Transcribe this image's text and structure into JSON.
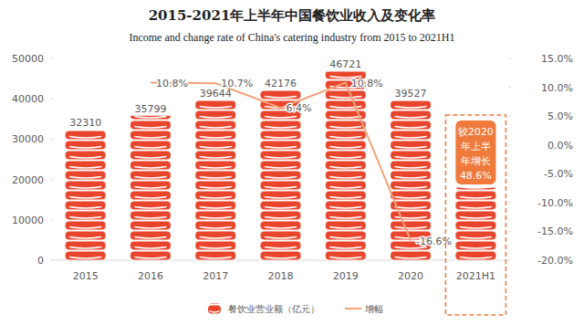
{
  "chart_data": {
    "type": "bar",
    "title": "2015-2021年上半年中国餐饮业收入及变化率",
    "subtitle": "Income and change rate of China's catering industry from 2015 to 2021H1",
    "categories": [
      "2015",
      "2016",
      "2017",
      "2018",
      "2019",
      "2020",
      "2021H1"
    ],
    "series": [
      {
        "name": "餐饮业营业额（亿元）",
        "type": "bar",
        "color": "#e8452c",
        "values": [
          32310,
          35799,
          39644,
          42176,
          46721,
          39527,
          18000
        ],
        "value_labels": [
          "32310",
          "35799",
          "39644",
          "42176",
          "46721",
          "39527",
          null
        ]
      },
      {
        "name": "增幅",
        "type": "line",
        "axis": "y2",
        "color": "#f4a27a",
        "values": [
          null,
          10.8,
          10.7,
          6.4,
          10.8,
          -16.6,
          null
        ],
        "value_labels": [
          null,
          "10.8%",
          "10.7%",
          "6.4%",
          "10.8%",
          "-16.6%",
          null
        ]
      }
    ],
    "ylim": [
      0,
      50000
    ],
    "yticks": [
      0,
      10000,
      20000,
      30000,
      40000,
      50000
    ],
    "y2lim": [
      -20,
      15
    ],
    "y2ticks": [
      {
        "value": -20,
        "label": "-20.0%"
      },
      {
        "value": -15,
        "label": "-15.0%"
      },
      {
        "value": -10,
        "label": "-10.0%"
      },
      {
        "value": -5,
        "label": "-5.0%"
      },
      {
        "value": 0,
        "label": "0.0%"
      },
      {
        "value": 5,
        "label": "5.0%"
      },
      {
        "value": 10,
        "label": "10.0%"
      },
      {
        "value": 15,
        "label": "15.0%"
      }
    ],
    "data_labels": true,
    "grid": false,
    "legend": "bottom",
    "annotation": [
      "较2020",
      "年上半",
      "年增长",
      "48.6%"
    ]
  }
}
